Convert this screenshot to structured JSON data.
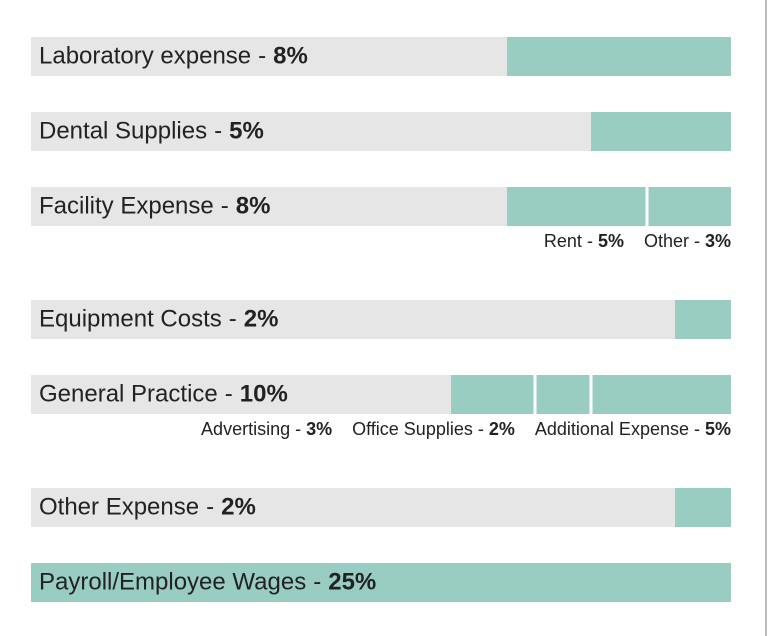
{
  "chart_data": {
    "type": "bar",
    "orientation": "horizontal",
    "categories": [
      "Laboratory expense",
      "Dental Supplies",
      "Facility Expense",
      "Equipment Costs",
      "General Practice",
      "Other Expense",
      "Payroll/Employee Wages"
    ],
    "values": [
      8,
      5,
      8,
      2,
      10,
      2,
      25
    ],
    "value_labels": [
      "8%",
      "5%",
      "8%",
      "2%",
      "10%",
      "2%",
      "25%"
    ],
    "separator": "-",
    "parts": [
      null,
      null,
      [
        {
          "name": "Rent",
          "value": 5,
          "value_label": "5%"
        },
        {
          "name": "Other",
          "value": 3,
          "value_label": "3%"
        }
      ],
      null,
      [
        {
          "name": "Advertising",
          "value": 3,
          "value_label": "3%"
        },
        {
          "name": "Office Supplies",
          "value": 2,
          "value_label": "2%"
        },
        {
          "name": "Additional Expense",
          "value": 5,
          "value_label": "5%"
        }
      ],
      null,
      null
    ],
    "xlim": [
      0,
      25
    ],
    "color": "#99cdc2",
    "track_color": "#e6e6e6"
  }
}
